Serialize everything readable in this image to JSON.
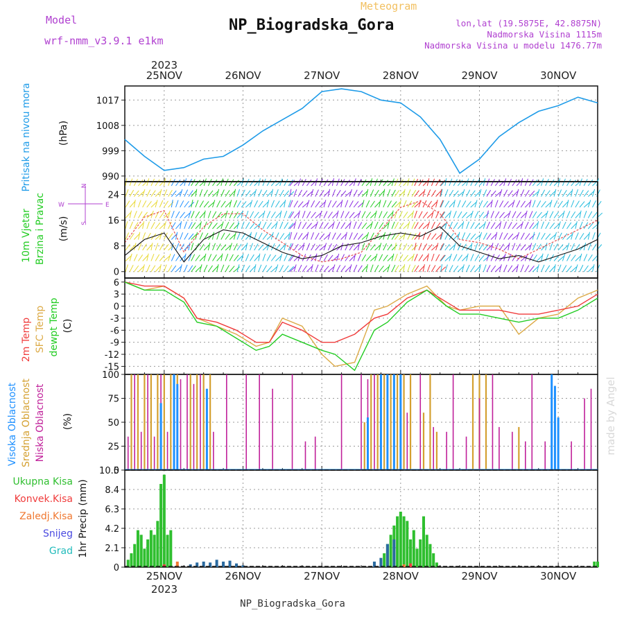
{
  "header": {
    "model_label": "Model",
    "model_name": "wrf-nmm_v3.9.1 e1km",
    "meteogram_label": "Meteogram",
    "station_title": "NP_Biogradska_Gora",
    "lonlat": "lon,lat (19.5875E, 42.8875N)",
    "elevation": "Nadmorska Visina 1115m",
    "model_elevation": "Nadmorska Visina u modelu 1476.77m",
    "year": "2023",
    "footer_station": "NP_Biogradska_Gora",
    "watermark": "made by Angel"
  },
  "days": [
    "25NOV",
    "26NOV",
    "27NOV",
    "28NOV",
    "29NOV",
    "30NOV"
  ],
  "colors": {
    "pressure": "#1e9be8",
    "temp2m": "#f03c3c",
    "sfc": "#dcaa46",
    "dewpt": "#22cc22",
    "high_cloud": "#1e90ff",
    "mid_cloud": "#d4a030",
    "low_cloud": "#c0209a",
    "precip_total": "#2fbf2f",
    "precip_conv": "#f03c3c",
    "precip_frozen": "#f07830",
    "precip_snow": "#4a4ae0",
    "precip_hail": "#22bbbb",
    "labels_purple": "#b040d0"
  },
  "chart_data": [
    {
      "type": "line",
      "name": "pressure",
      "ylabel_left": "Pritisak na nivou mora",
      "ylabel_unit": "(hPa)",
      "yticks": [
        990,
        999,
        1008,
        1017
      ],
      "ylim": [
        988,
        1022
      ],
      "series": [
        {
          "x": [
            0,
            6,
            12,
            18,
            24,
            30,
            36,
            42,
            48,
            54,
            60,
            66,
            72,
            78,
            84,
            90,
            96,
            102,
            108,
            114,
            120,
            126,
            132,
            138,
            144
          ],
          "values": [
            1003,
            997,
            992,
            993,
            996,
            997,
            1001,
            1006,
            1010,
            1014,
            1020,
            1021,
            1020,
            1017,
            1016,
            1011,
            1003,
            991,
            996,
            1004,
            1009,
            1013,
            1015,
            1018,
            1016
          ]
        }
      ]
    },
    {
      "type": "line",
      "name": "wind",
      "ylabel_left_1": "10m Vjetar",
      "ylabel_left_2": "Brzina i Pravac",
      "ylabel_unit": "(m/s)",
      "yticks": [
        0,
        8,
        16,
        24
      ],
      "ylim": [
        -2,
        28
      ],
      "compass": {
        "n": "N",
        "w": "W",
        "e": "E",
        "s": "S"
      },
      "series": [
        {
          "name": "speed",
          "x": [
            0,
            6,
            12,
            18,
            24,
            30,
            36,
            42,
            48,
            54,
            60,
            66,
            72,
            78,
            84,
            90,
            96,
            102,
            108,
            114,
            120,
            126,
            132,
            138,
            144
          ],
          "values": [
            5,
            10,
            12,
            3,
            10,
            13,
            12,
            9,
            6,
            4,
            5,
            8,
            9,
            11,
            12,
            11,
            14,
            8,
            6,
            4,
            5,
            3,
            5,
            7,
            10
          ]
        },
        {
          "name": "gust",
          "x": [
            0,
            6,
            12,
            18,
            24,
            30,
            36,
            42,
            48,
            54,
            60,
            66,
            72,
            78,
            84,
            90,
            96,
            102,
            108,
            114,
            120,
            126,
            132,
            138,
            144
          ],
          "values": [
            9,
            17,
            19,
            6,
            14,
            18,
            18,
            13,
            9,
            5,
            3,
            4,
            6,
            13,
            20,
            22,
            18,
            10,
            9,
            7,
            4,
            7,
            10,
            13,
            16
          ]
        }
      ]
    },
    {
      "type": "line",
      "name": "temperature",
      "ylabel_left_1": "2m Temp",
      "ylabel_left_2": "SFC Temp",
      "ylabel_left_3": "dewpt Temp",
      "ylabel_unit": "(C)",
      "yticks": [
        -15,
        -12,
        -9,
        -6,
        -3,
        0,
        3,
        6
      ],
      "ylim": [
        -17,
        7
      ],
      "series": [
        {
          "name": "2m Temp",
          "x": [
            0,
            6,
            12,
            18,
            22,
            28,
            34,
            40,
            44,
            48,
            54,
            60,
            64,
            70,
            76,
            80,
            86,
            92,
            98,
            102,
            108,
            114,
            120,
            126,
            132,
            138,
            144
          ],
          "values": [
            6,
            5,
            5,
            2,
            -3,
            -4,
            -6,
            -9,
            -9,
            -4,
            -6,
            -9,
            -9,
            -7,
            -3,
            -2,
            2,
            4,
            1,
            -1,
            -1,
            -1,
            -2,
            -2,
            -1,
            0,
            3
          ]
        },
        {
          "name": "SFC Temp",
          "x": [
            0,
            6,
            12,
            18,
            22,
            28,
            34,
            40,
            44,
            48,
            54,
            60,
            64,
            70,
            76,
            80,
            86,
            92,
            98,
            102,
            108,
            114,
            120,
            126,
            132,
            138,
            144
          ],
          "values": [
            6,
            4,
            5,
            2,
            -3,
            -5,
            -7,
            -10,
            -9,
            -3,
            -5,
            -12,
            -15,
            -14,
            -1,
            0,
            3,
            5,
            0,
            -1,
            0,
            0,
            -7,
            -3,
            -2,
            2,
            4
          ]
        },
        {
          "name": "dewpt Temp",
          "x": [
            0,
            6,
            12,
            18,
            22,
            28,
            34,
            40,
            44,
            48,
            54,
            60,
            64,
            70,
            76,
            80,
            86,
            92,
            98,
            102,
            108,
            114,
            120,
            126,
            132,
            138,
            144
          ],
          "values": [
            6,
            4,
            4,
            1,
            -4,
            -5,
            -8,
            -11,
            -10,
            -7,
            -9,
            -11,
            -12,
            -16,
            -6,
            -4,
            1,
            4,
            0,
            -2,
            -2,
            -3,
            -4,
            -3,
            -3,
            -1,
            2
          ]
        }
      ]
    },
    {
      "type": "bar",
      "name": "cloud",
      "ylabel_left_1": "Visoka Oblacnost",
      "ylabel_left_2": "Srednja Oblacnost",
      "ylabel_left_3": "Niska Oblacnost",
      "ylabel_unit": "(%)",
      "yticks": [
        0,
        25,
        50,
        75,
        100
      ],
      "ylim": [
        0,
        100
      ],
      "series": [
        {
          "name": "Niska Oblacnost",
          "x": [
            1,
            3,
            5,
            7,
            9,
            11,
            13,
            15,
            17,
            19,
            21,
            23,
            25,
            27,
            31,
            37,
            41,
            45,
            51,
            55,
            58,
            66,
            72,
            74,
            76,
            78,
            80,
            82,
            84,
            86,
            90,
            94,
            98,
            100,
            104,
            108,
            112,
            114,
            118,
            122,
            124,
            128,
            132,
            136,
            140,
            142
          ],
          "values": [
            35,
            100,
            40,
            100,
            35,
            100,
            40,
            100,
            95,
            100,
            90,
            100,
            60,
            40,
            100,
            100,
            100,
            85,
            100,
            30,
            35,
            100,
            100,
            95,
            100,
            90,
            100,
            85,
            100,
            60,
            100,
            45,
            40,
            100,
            35,
            75,
            100,
            45,
            40,
            30,
            100,
            30,
            45,
            30,
            75,
            85
          ]
        },
        {
          "name": "Srednja Oblacnost",
          "x": [
            2,
            4,
            6,
            8,
            10,
            12,
            14,
            16,
            20,
            22,
            24,
            26,
            73,
            75,
            77,
            79,
            81,
            83,
            85,
            87,
            91,
            93,
            95,
            106,
            108,
            110,
            120
          ],
          "values": [
            100,
            100,
            100,
            100,
            100,
            100,
            100,
            100,
            100,
            100,
            100,
            100,
            50,
            100,
            100,
            100,
            100,
            100,
            100,
            100,
            60,
            100,
            40,
            100,
            100,
            100,
            45
          ]
        },
        {
          "name": "Visoka Oblacnost",
          "x": [
            11,
            15,
            16,
            25,
            74,
            78,
            80,
            82,
            84,
            130,
            131,
            132
          ],
          "values": [
            70,
            100,
            90,
            85,
            55,
            100,
            100,
            100,
            100,
            100,
            88,
            55
          ]
        }
      ]
    },
    {
      "type": "bar",
      "name": "precipitation",
      "ylabel_unit": "1hr Precip (mm)",
      "legend": [
        "Ukupna Kisa",
        "Konvek.Kisa",
        "Zaledj.Kisa",
        "Snijeg",
        "Grad"
      ],
      "yticks": [
        0,
        2.1,
        4.2,
        6.3,
        8.4,
        10.5
      ],
      "ylim": [
        0,
        10.5
      ],
      "series": [
        {
          "name": "Ukupna Kisa",
          "x": [
            1,
            2,
            3,
            4,
            5,
            6,
            7,
            8,
            9,
            10,
            11,
            12,
            13,
            14,
            79,
            80,
            81,
            82,
            83,
            84,
            85,
            86,
            87,
            88,
            89,
            90,
            91,
            92,
            93,
            94,
            95,
            143,
            144
          ],
          "values": [
            0.8,
            1.5,
            2.5,
            4.0,
            3.5,
            2.0,
            3.0,
            4.0,
            3.5,
            5.0,
            9.0,
            10.0,
            3.5,
            4.0,
            1.5,
            2.5,
            3.5,
            4.5,
            5.5,
            6.0,
            5.5,
            5.0,
            3.0,
            4.0,
            2.0,
            3.0,
            5.5,
            3.5,
            2.5,
            1.5,
            0.5,
            0.6,
            0.6
          ]
        },
        {
          "name": "Snijeg",
          "x": [
            20,
            22,
            24,
            26,
            28,
            30,
            32,
            34,
            36,
            76,
            78,
            80,
            82
          ],
          "values": [
            0.3,
            0.5,
            0.6,
            0.5,
            0.8,
            0.6,
            0.7,
            0.4,
            0.2,
            0.6,
            1.0,
            2.5,
            3.0
          ]
        },
        {
          "name": "Konvek.Kisa",
          "x": [
            12,
            87
          ],
          "values": [
            0.3,
            0.4
          ]
        },
        {
          "name": "Zaledj.Kisa",
          "x": [
            16,
            85
          ],
          "values": [
            0.6,
            0.3
          ]
        }
      ]
    }
  ]
}
